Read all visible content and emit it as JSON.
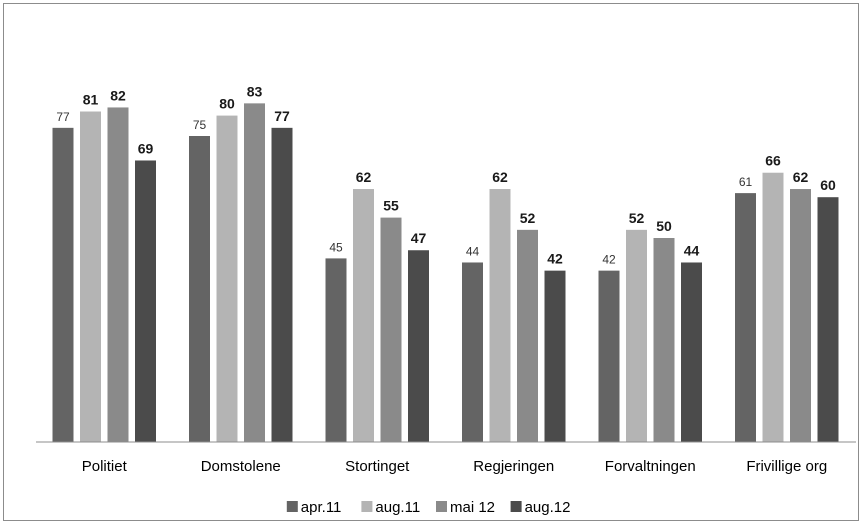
{
  "chart_data": {
    "type": "bar",
    "title": "",
    "xlabel": "",
    "ylabel": "",
    "ylim": [
      0,
      90
    ],
    "grid": false,
    "legend_position": "bottom",
    "categories": [
      "Politiet",
      "Domstolene",
      "Stortinget",
      "Regjeringen",
      "Forvaltningen",
      "Frivillige org"
    ],
    "series": [
      {
        "name": "apr.11",
        "color": "#646464",
        "values": [
          77,
          75,
          45,
          44,
          42,
          61
        ]
      },
      {
        "name": "aug.11",
        "color": "#b4b4b4",
        "values": [
          81,
          80,
          62,
          62,
          52,
          66
        ]
      },
      {
        "name": "mai 12",
        "color": "#8a8a8a",
        "values": [
          82,
          83,
          55,
          52,
          50,
          62
        ]
      },
      {
        "name": "aug.12",
        "color": "#4b4b4b",
        "values": [
          69,
          77,
          47,
          42,
          44,
          60
        ]
      }
    ]
  }
}
